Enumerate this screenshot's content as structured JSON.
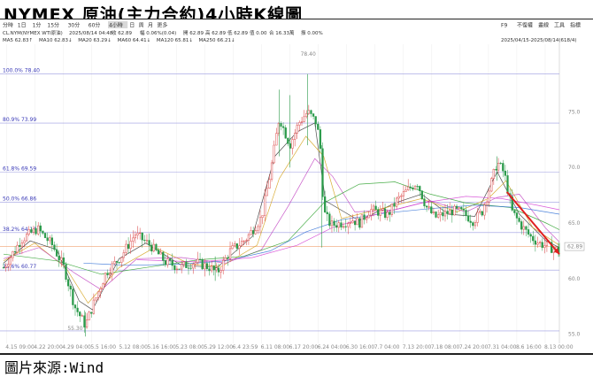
{
  "title": "NYMEX 原油(主力合約)4小時K線圖",
  "footer": "圖片來源:Wind",
  "toolbar": {
    "periods": [
      "分時",
      "1日",
      "1分",
      "15分",
      "30分",
      "60分",
      "4小時",
      "日",
      "周",
      "月",
      "更多"
    ],
    "active_period": "4小時",
    "right_items": [
      "F9",
      "不復權",
      "畫線",
      "工具",
      "指標"
    ]
  },
  "info": {
    "symbol": "CL.NYM(NYMEX WTI原油)",
    "time": "2025/08/14 04:48",
    "close_label": "收 62.89",
    "change_label": "幅 0.06%(0.04)",
    "open_label": "開 62.89",
    "high_label": "高 62.89",
    "low_label": "低 62.89",
    "chg_label": "值 0.00",
    "amount_label": "合 16.33萬",
    "vol_label": "振 0.00%"
  },
  "ma_line": [
    {
      "label": "MA5 62.83↑",
      "color": "#333333"
    },
    {
      "label": "MA10 62.83↓",
      "color": "#d4a017"
    },
    {
      "label": "MA20 63.29↓",
      "color": "#c040c0"
    },
    {
      "label": "MA60 64.41↓",
      "color": "#2aa02a"
    },
    {
      "label": "MA120 65.81↓",
      "color": "#2f6fd6"
    },
    {
      "label": "MA250 66.21↓",
      "color": "#d43fd4"
    }
  ],
  "date_range": "2025/04/15-2025/08/14(618/4)",
  "chart_data": {
    "type": "candlestick",
    "ylim": [
      54.5,
      80.6
    ],
    "y_ticks": [
      55,
      60,
      65,
      70,
      75
    ],
    "x_tick_labels": [
      "4.15 09:00",
      "4.22 20:00",
      "4.29 04:00",
      "5.5 16:00",
      "5.12 08:00",
      "5.16 16:00",
      "5.23 08:00",
      "5.29 12:00",
      "6.4 23:59",
      "6.11 08:00",
      "6.17 20:00",
      "6.24 04:00",
      "6.30 16:00",
      "7.7 04:00",
      "7.13 20:00",
      "7.18 08:00",
      "7.24 20:00",
      "7.31 04:00",
      "8.6 16:00",
      "8.13 00:00"
    ],
    "fib_levels": [
      {
        "label": "100.0%",
        "value": 78.4
      },
      {
        "label": "80.9%",
        "value": 73.99
      },
      {
        "label": "61.8%",
        "value": 69.59
      },
      {
        "label": "50.0%",
        "value": 66.86
      },
      {
        "label": "38.2%",
        "value": 64.14
      },
      {
        "label": "23.6%",
        "value": 60.77
      }
    ],
    "fib_extra_lines": [
      55.3
    ],
    "last_price": 62.89,
    "high_label": "78.40",
    "low_label": "55.30",
    "path": [
      [
        0,
        61.0
      ],
      [
        20,
        63.5
      ],
      [
        38,
        64.5
      ],
      [
        55,
        63.0
      ],
      [
        68,
        61.0
      ],
      [
        80,
        57.5
      ],
      [
        92,
        55.8
      ],
      [
        100,
        57.5
      ],
      [
        115,
        60.5
      ],
      [
        132,
        62.0
      ],
      [
        148,
        64.0
      ],
      [
        165,
        63.0
      ],
      [
        182,
        61.5
      ],
      [
        198,
        61.0
      ],
      [
        215,
        61.5
      ],
      [
        232,
        61.0
      ],
      [
        240,
        60.5
      ],
      [
        255,
        62.5
      ],
      [
        272,
        63.5
      ],
      [
        290,
        65.5
      ],
      [
        300,
        69.5
      ],
      [
        310,
        74.5
      ],
      [
        322,
        72.0
      ],
      [
        332,
        74.0
      ],
      [
        342,
        75.0
      ],
      [
        352,
        74.0
      ],
      [
        356,
        72.0
      ],
      [
        360,
        66.0
      ],
      [
        368,
        64.8
      ],
      [
        380,
        65.0
      ],
      [
        392,
        65.3
      ],
      [
        400,
        65.0
      ],
      [
        412,
        66.2
      ],
      [
        422,
        66.0
      ],
      [
        432,
        65.7
      ],
      [
        442,
        67.0
      ],
      [
        455,
        68.0
      ],
      [
        465,
        68.7
      ],
      [
        475,
        66.5
      ],
      [
        485,
        65.5
      ],
      [
        495,
        65.8
      ],
      [
        505,
        66.1
      ],
      [
        515,
        66.0
      ],
      [
        528,
        65.2
      ],
      [
        538,
        66.0
      ],
      [
        548,
        68.5
      ],
      [
        555,
        70.5
      ],
      [
        563,
        69.5
      ],
      [
        572,
        66.0
      ],
      [
        582,
        64.8
      ],
      [
        592,
        63.8
      ],
      [
        602,
        63.2
      ],
      [
        612,
        62.9
      ],
      [
        625,
        62.5
      ]
    ],
    "trend_arrow": {
      "from": [
        566,
        67.8
      ],
      "to": [
        625,
        62.2
      ],
      "color": "#e02020"
    },
    "ma_series": [
      {
        "name": "MA5",
        "color": "#333333",
        "points": [
          [
            0,
            61.4
          ],
          [
            30,
            63.4
          ],
          [
            60,
            62.6
          ],
          [
            85,
            58.0
          ],
          [
            100,
            57.2
          ],
          [
            130,
            61.8
          ],
          [
            160,
            63.2
          ],
          [
            200,
            61.2
          ],
          [
            240,
            61.0
          ],
          [
            280,
            63.8
          ],
          [
            305,
            71.0
          ],
          [
            330,
            73.2
          ],
          [
            350,
            74.0
          ],
          [
            362,
            67.0
          ],
          [
            400,
            65.2
          ],
          [
            440,
            66.8
          ],
          [
            470,
            67.6
          ],
          [
            500,
            65.8
          ],
          [
            530,
            65.6
          ],
          [
            555,
            69.6
          ],
          [
            580,
            65.8
          ],
          [
            610,
            63.4
          ],
          [
            625,
            62.8
          ]
        ]
      },
      {
        "name": "MA10",
        "color": "#d4a017",
        "points": [
          [
            0,
            61.6
          ],
          [
            35,
            63.2
          ],
          [
            70,
            61.0
          ],
          [
            95,
            57.8
          ],
          [
            130,
            61.0
          ],
          [
            170,
            62.8
          ],
          [
            210,
            61.3
          ],
          [
            245,
            61.1
          ],
          [
            285,
            63.0
          ],
          [
            310,
            69.0
          ],
          [
            340,
            72.8
          ],
          [
            360,
            71.0
          ],
          [
            380,
            65.4
          ],
          [
            430,
            66.4
          ],
          [
            470,
            67.2
          ],
          [
            510,
            66.0
          ],
          [
            545,
            67.2
          ],
          [
            565,
            68.8
          ],
          [
            595,
            64.6
          ],
          [
            625,
            63.0
          ]
        ]
      },
      {
        "name": "MA20",
        "color": "#c040c0",
        "points": [
          [
            0,
            61.8
          ],
          [
            40,
            62.8
          ],
          [
            80,
            60.5
          ],
          [
            110,
            59.0
          ],
          [
            150,
            61.8
          ],
          [
            200,
            61.9
          ],
          [
            250,
            61.4
          ],
          [
            290,
            62.6
          ],
          [
            320,
            66.5
          ],
          [
            350,
            70.8
          ],
          [
            370,
            69.2
          ],
          [
            395,
            66.0
          ],
          [
            440,
            66.2
          ],
          [
            480,
            67.0
          ],
          [
            520,
            66.0
          ],
          [
            555,
            67.3
          ],
          [
            580,
            67.6
          ],
          [
            610,
            64.5
          ],
          [
            625,
            63.3
          ]
        ]
      },
      {
        "name": "MA60",
        "color": "#2aa02a",
        "points": [
          [
            0,
            62.2
          ],
          [
            60,
            61.6
          ],
          [
            110,
            60.4
          ],
          [
            160,
            61.0
          ],
          [
            220,
            61.7
          ],
          [
            270,
            62.0
          ],
          [
            320,
            63.4
          ],
          [
            360,
            66.8
          ],
          [
            400,
            68.5
          ],
          [
            440,
            68.7
          ],
          [
            480,
            67.6
          ],
          [
            520,
            66.8
          ],
          [
            570,
            66.4
          ],
          [
            610,
            65.0
          ],
          [
            625,
            64.4
          ]
        ]
      },
      {
        "name": "MA120",
        "color": "#2f6fd6",
        "points": [
          [
            90,
            61.4
          ],
          [
            140,
            61.2
          ],
          [
            200,
            61.3
          ],
          [
            250,
            61.6
          ],
          [
            300,
            62.5
          ],
          [
            340,
            64.2
          ],
          [
            380,
            65.3
          ],
          [
            430,
            65.9
          ],
          [
            480,
            66.3
          ],
          [
            530,
            66.6
          ],
          [
            580,
            66.4
          ],
          [
            625,
            65.8
          ]
        ]
      },
      {
        "name": "MA250",
        "color": "#d43fd4",
        "points": [
          [
            150,
            61.7
          ],
          [
            220,
            61.5
          ],
          [
            280,
            61.9
          ],
          [
            330,
            63.0
          ],
          [
            370,
            64.6
          ],
          [
            420,
            65.8
          ],
          [
            470,
            66.8
          ],
          [
            520,
            67.4
          ],
          [
            560,
            67.2
          ],
          [
            600,
            66.6
          ],
          [
            625,
            66.2
          ]
        ]
      }
    ]
  }
}
